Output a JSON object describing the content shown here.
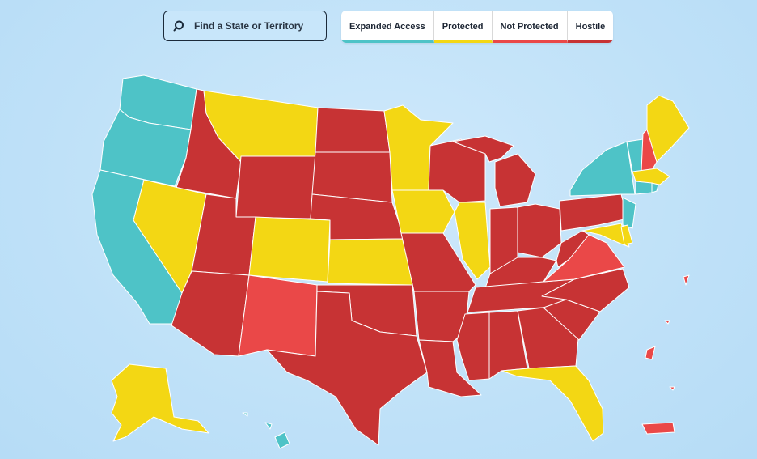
{
  "search": {
    "placeholder": "Find a State or Territory",
    "icon": "search-icon"
  },
  "legend": [
    {
      "label": "Expanded Access",
      "color": "#4ec3c7"
    },
    {
      "label": "Protected",
      "color": "#f3d714"
    },
    {
      "label": "Not Protected",
      "color": "#ea4848"
    },
    {
      "label": "Hostile",
      "color": "#c73334"
    }
  ]
}
